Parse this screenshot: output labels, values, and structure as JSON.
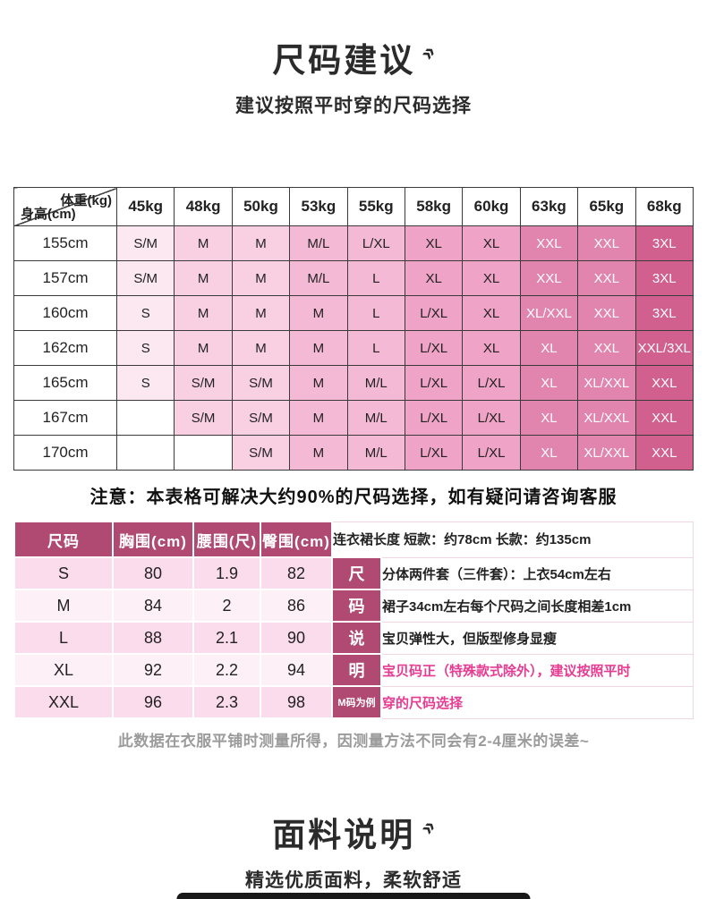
{
  "header": {
    "title": "尺码建议",
    "mark": "»",
    "subtitle": "建议按照平时穿的尺码选择"
  },
  "size_table": {
    "corner_top": "体重(kg)",
    "corner_bottom": "身高(cm)",
    "weights": [
      "45kg",
      "48kg",
      "50kg",
      "53kg",
      "55kg",
      "58kg",
      "60kg",
      "63kg",
      "65kg",
      "68kg"
    ],
    "column_colors": [
      "#fce8f1",
      "#f8d0e2",
      "#f8d0e2",
      "#f4b9d4",
      "#f4b9d4",
      "#efa3c6",
      "#efa3c6",
      "#e184ae",
      "#e184ae",
      "#d2608f"
    ],
    "column_text_colors": [
      "#222222",
      "#222222",
      "#222222",
      "#222222",
      "#222222",
      "#222222",
      "#222222",
      "#ffffff",
      "#ffffff",
      "#ffffff"
    ],
    "rows": [
      {
        "height": "155cm",
        "cells": [
          "S/M",
          "M",
          "M",
          "M/L",
          "L/XL",
          "XL",
          "XL",
          "XXL",
          "XXL",
          "3XL"
        ]
      },
      {
        "height": "157cm",
        "cells": [
          "S/M",
          "M",
          "M",
          "M/L",
          "L",
          "XL",
          "XL",
          "XXL",
          "XXL",
          "3XL"
        ]
      },
      {
        "height": "160cm",
        "cells": [
          "S",
          "M",
          "M",
          "M",
          "L",
          "L/XL",
          "XL",
          "XL/XXL",
          "XXL",
          "3XL"
        ]
      },
      {
        "height": "162cm",
        "cells": [
          "S",
          "M",
          "M",
          "M",
          "L",
          "L/XL",
          "XL",
          "XL",
          "XXL",
          "XXL/3XL"
        ]
      },
      {
        "height": "165cm",
        "cells": [
          "S",
          "S/M",
          "S/M",
          "M",
          "M/L",
          "L/XL",
          "L/XL",
          "XL",
          "XL/XXL",
          "XXL"
        ]
      },
      {
        "height": "167cm",
        "cells": [
          "",
          "S/M",
          "S/M",
          "M",
          "M/L",
          "L/XL",
          "L/XL",
          "XL",
          "XL/XXL",
          "XXL"
        ]
      },
      {
        "height": "170cm",
        "cells": [
          "",
          "",
          "S/M",
          "M",
          "M/L",
          "L/XL",
          "L/XL",
          "XL",
          "XL/XXL",
          "XXL"
        ]
      }
    ]
  },
  "note": "注意：本表格可解决大约90%的尺码选择，如有疑问请咨询客服",
  "measure_table": {
    "header_bg": "#b04a73",
    "headers": [
      "尺码",
      "胸围(cm)",
      "腰围(尺)",
      "臀围(cm)"
    ],
    "rows": [
      [
        "S",
        "80",
        "1.9",
        "82"
      ],
      [
        "M",
        "84",
        "2",
        "86"
      ],
      [
        "L",
        "88",
        "2.1",
        "90"
      ],
      [
        "XL",
        "92",
        "2.2",
        "94"
      ],
      [
        "XXL",
        "96",
        "2.3",
        "98"
      ]
    ],
    "row_colors": [
      "#fbdcec",
      "#fdf0f7",
      "#fbdcec",
      "#fdf0f7",
      "#fbdcec"
    ],
    "side_labels": [
      "尺",
      "码",
      "说",
      "明",
      "M码为例"
    ],
    "header_note": "连衣裙长度 短款：约78cm  长款：约135cm",
    "notes": [
      {
        "text": "分体两件套（三件套）：上衣54cm左右",
        "highlight": false
      },
      {
        "text": "裙子34cm左右每个尺码之间长度相差1cm",
        "highlight": false
      },
      {
        "text": "宝贝弹性大，但版型修身显瘦",
        "highlight": false
      },
      {
        "text": "宝贝码正（特殊款式除外），建议按照平时",
        "highlight": true
      },
      {
        "text": "穿的尺码选择",
        "highlight": true
      }
    ],
    "highlight_color": "#e73b92"
  },
  "footnote": "此数据在衣服平铺时测量所得，因测量方法不同会有2-4厘米的误差~",
  "fabric": {
    "title": "面料说明",
    "mark": "»",
    "subtitle": "精选优质面料，柔软舒适"
  }
}
